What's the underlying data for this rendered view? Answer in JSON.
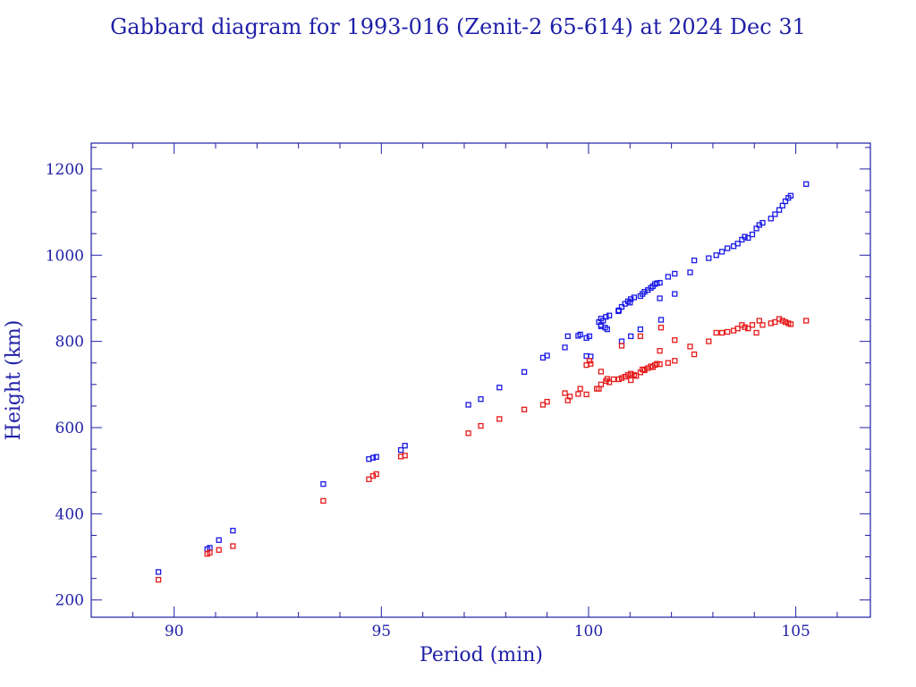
{
  "colors": {
    "axis": "#1f1fa8",
    "text": "#1f1fa8",
    "apogee": "#1a1ae6",
    "perigee": "#e61a1a",
    "background": "#ffffff"
  },
  "chart_data": {
    "type": "scatter",
    "title": "Gabbard diagram for 1993-016 (Zenit-2 65-614) at 2024 Dec 31",
    "xlabel": "Period (min)",
    "ylabel": "Height (km)",
    "xlim": [
      88,
      106.8
    ],
    "ylim": [
      160,
      1260
    ],
    "xticks": [
      90,
      95,
      100,
      105
    ],
    "yticks": [
      200,
      400,
      600,
      800,
      1000,
      1200
    ],
    "grid": false,
    "series": [
      {
        "color": "#1a1ae6",
        "x": [
          89.62,
          90.8,
          90.86,
          91.08,
          91.42,
          93.6,
          94.7,
          94.8,
          94.88,
          95.47,
          95.57,
          97.1,
          97.4,
          97.85,
          98.45,
          98.9,
          99.0,
          99.43,
          99.5,
          99.75,
          99.8,
          99.95,
          100.02,
          100.25,
          100.3,
          100.42,
          100.5,
          100.73,
          100.8,
          100.88,
          100.95,
          101.02,
          101.1,
          101.25,
          101.3,
          101.35,
          101.43,
          101.5,
          101.55,
          101.6,
          101.65,
          101.72,
          101.75,
          101.92,
          102.08,
          102.45,
          102.55,
          102.9,
          103.08,
          103.22,
          103.35,
          103.5,
          103.6,
          103.7,
          103.77,
          103.85,
          103.95,
          104.05,
          104.12,
          104.2,
          104.4,
          104.5,
          104.6,
          104.68,
          104.75,
          104.82,
          104.88,
          105.25,
          100.3,
          100.45,
          100.8,
          101.02,
          101.25,
          101.72,
          102.08,
          100.05,
          99.95,
          100.72,
          101.0,
          100.4,
          100.35,
          100.3
        ],
        "y": [
          265,
          318,
          321,
          339,
          361,
          469,
          527,
          530,
          532,
          548,
          558,
          653,
          666,
          693,
          729,
          762,
          767,
          786,
          812,
          813,
          816,
          766,
          812,
          845,
          853,
          857,
          860,
          872,
          880,
          887,
          893,
          898,
          902,
          905,
          910,
          915,
          919,
          924,
          928,
          933,
          935,
          936,
          850,
          950,
          957,
          960,
          988,
          993,
          1000,
          1008,
          1016,
          1021,
          1027,
          1036,
          1043,
          1040,
          1048,
          1062,
          1070,
          1075,
          1085,
          1095,
          1105,
          1115,
          1125,
          1133,
          1138,
          1165,
          838,
          828,
          800,
          812,
          828,
          900,
          910,
          765,
          808,
          870,
          890,
          832,
          848,
          835
        ]
      },
      {
        "color": "#e61a1a",
        "x": [
          89.62,
          90.8,
          90.86,
          91.08,
          91.42,
          93.6,
          94.7,
          94.8,
          94.88,
          95.47,
          95.57,
          97.1,
          97.4,
          97.85,
          98.45,
          98.9,
          99.0,
          99.43,
          99.5,
          99.75,
          99.8,
          99.95,
          100.02,
          100.25,
          100.3,
          100.42,
          100.5,
          100.73,
          100.8,
          100.88,
          100.95,
          101.02,
          101.1,
          101.25,
          101.3,
          101.35,
          101.43,
          101.5,
          101.55,
          101.6,
          101.65,
          101.72,
          101.75,
          101.92,
          102.08,
          102.45,
          102.55,
          102.9,
          103.08,
          103.22,
          103.35,
          103.5,
          103.6,
          103.7,
          103.77,
          103.85,
          103.95,
          104.05,
          104.12,
          104.2,
          104.4,
          104.5,
          104.6,
          104.68,
          104.75,
          104.82,
          104.88,
          105.25,
          100.3,
          100.45,
          100.8,
          101.02,
          101.25,
          101.72,
          102.08,
          100.05,
          99.95,
          99.55,
          100.6,
          101.35,
          100.2,
          101.15
        ],
        "y": [
          247,
          307,
          310,
          316,
          325,
          430,
          480,
          488,
          492,
          533,
          535,
          587,
          604,
          620,
          642,
          653,
          660,
          680,
          663,
          678,
          690,
          745,
          755,
          690,
          700,
          708,
          705,
          712,
          715,
          718,
          722,
          725,
          722,
          728,
          735,
          733,
          738,
          742,
          740,
          745,
          748,
          778,
          832,
          750,
          755,
          788,
          770,
          800,
          820,
          820,
          822,
          825,
          830,
          838,
          833,
          830,
          838,
          820,
          848,
          838,
          842,
          845,
          852,
          848,
          845,
          842,
          840,
          848,
          730,
          713,
          790,
          710,
          812,
          747,
          803,
          748,
          677,
          672,
          712,
          735,
          690,
          720
        ]
      }
    ]
  }
}
